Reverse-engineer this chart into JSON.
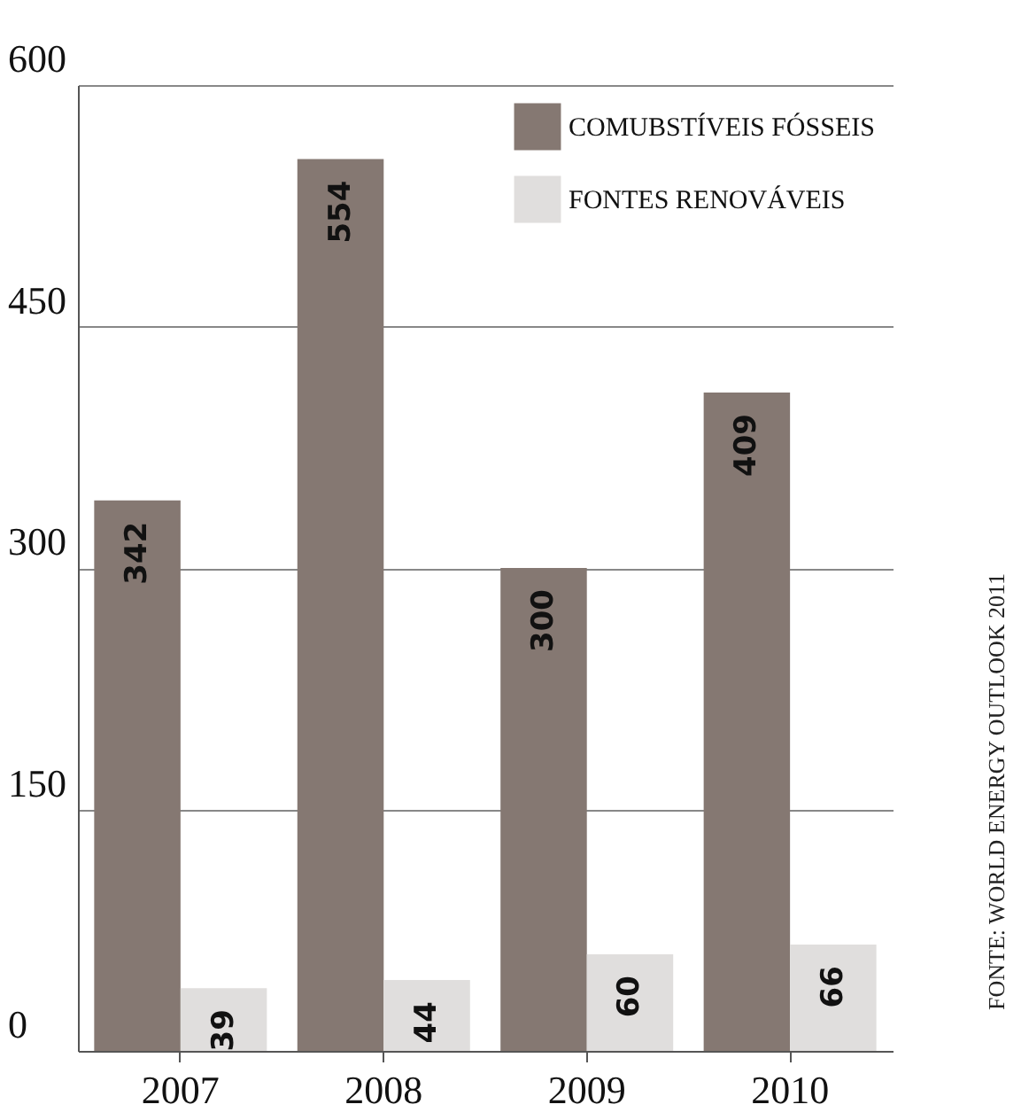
{
  "chart_data": {
    "type": "bar",
    "categories": [
      "2007",
      "2008",
      "2009",
      "2010"
    ],
    "series": [
      {
        "name": "COMUBSTÍVEIS FÓSSEIS",
        "color": "#857872",
        "values": [
          342,
          554,
          300,
          409
        ]
      },
      {
        "name": "FONTES RENOVÁVEIS",
        "color": "#e0dedd",
        "values": [
          39,
          44,
          60,
          66
        ]
      }
    ],
    "ylim": [
      0,
      600
    ],
    "yticks": [
      0,
      150,
      300,
      450,
      600
    ],
    "grid": "y",
    "legend": "top right",
    "data_labels": true,
    "annotations": [
      "FONTE: WORLD ENERGY OUTLOOK 2011"
    ]
  }
}
